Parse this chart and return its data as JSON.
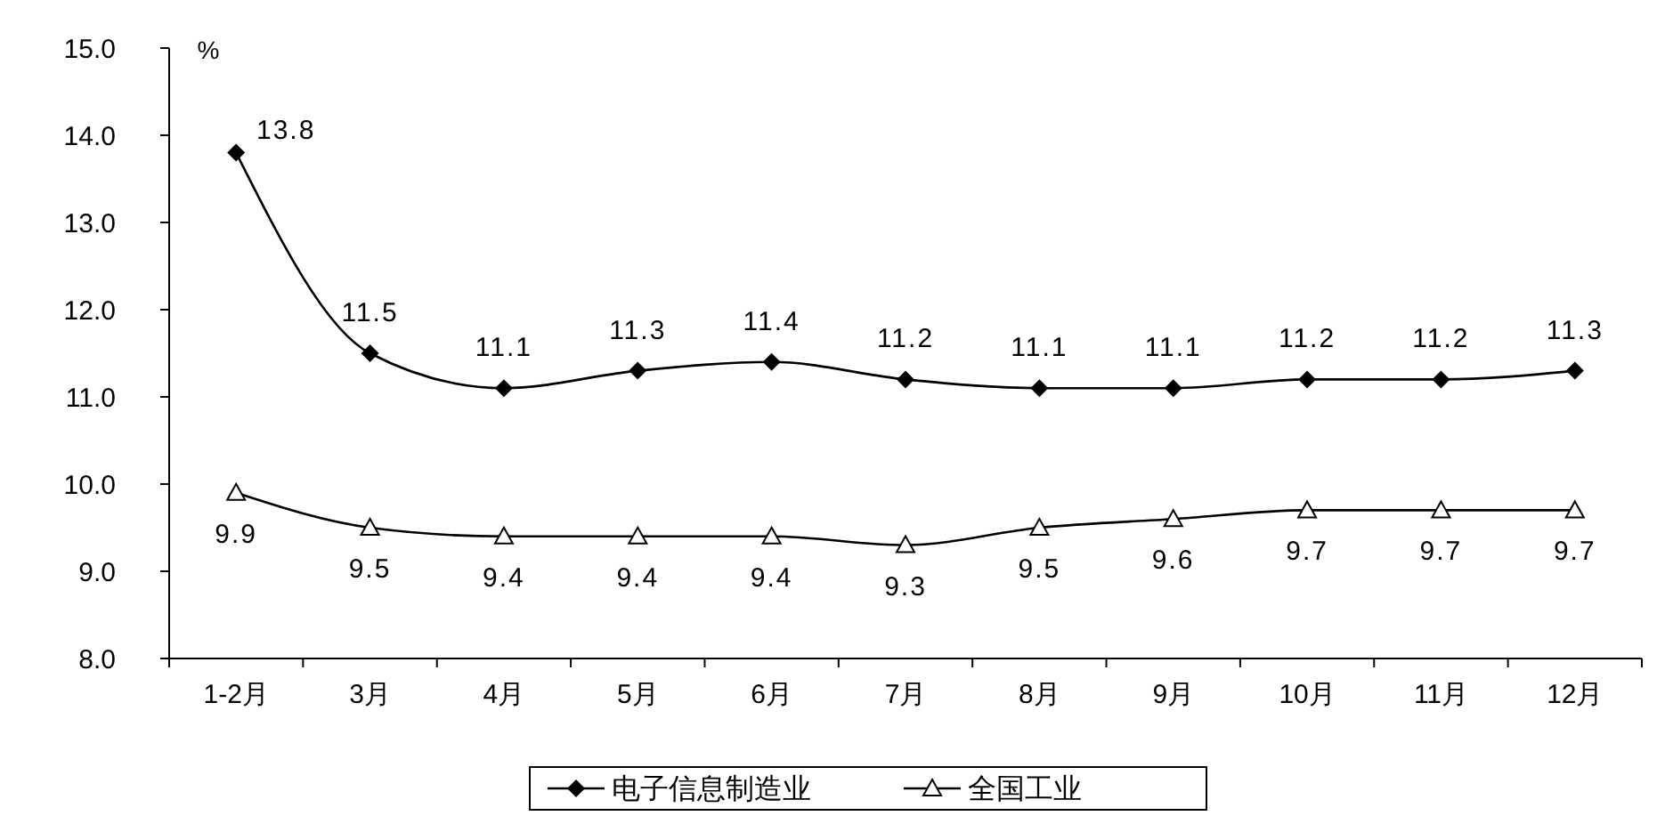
{
  "chart_data": {
    "type": "line",
    "ylabel": "%",
    "categories": [
      "1-2月",
      "3月",
      "4月",
      "5月",
      "6月",
      "7月",
      "8月",
      "9月",
      "10月",
      "11月",
      "12月"
    ],
    "series": [
      {
        "name": "电子信息制造业",
        "color": "#000000",
        "marker": "diamond",
        "values": [
          13.8,
          11.5,
          11.1,
          11.3,
          11.4,
          11.2,
          11.1,
          11.1,
          11.2,
          11.2,
          11.3
        ]
      },
      {
        "name": "全国工业",
        "color": "#000000",
        "marker": "triangle",
        "values": [
          9.9,
          9.5,
          9.4,
          9.4,
          9.4,
          9.3,
          9.5,
          9.6,
          9.7,
          9.7,
          9.7
        ]
      }
    ],
    "ylim": [
      8,
      15
    ],
    "yticks": [
      {
        "value": 8,
        "label": "8.0"
      },
      {
        "value": 9,
        "label": "9.0"
      },
      {
        "value": 10,
        "label": "10.0"
      },
      {
        "value": 11,
        "label": "11.0"
      },
      {
        "value": 12,
        "label": "12.0"
      },
      {
        "value": 13,
        "label": "13.0"
      },
      {
        "value": 14,
        "label": "14.0"
      },
      {
        "value": 15,
        "label": "15.0"
      }
    ],
    "data_labels": true,
    "legend": "bottom",
    "grid": false
  }
}
